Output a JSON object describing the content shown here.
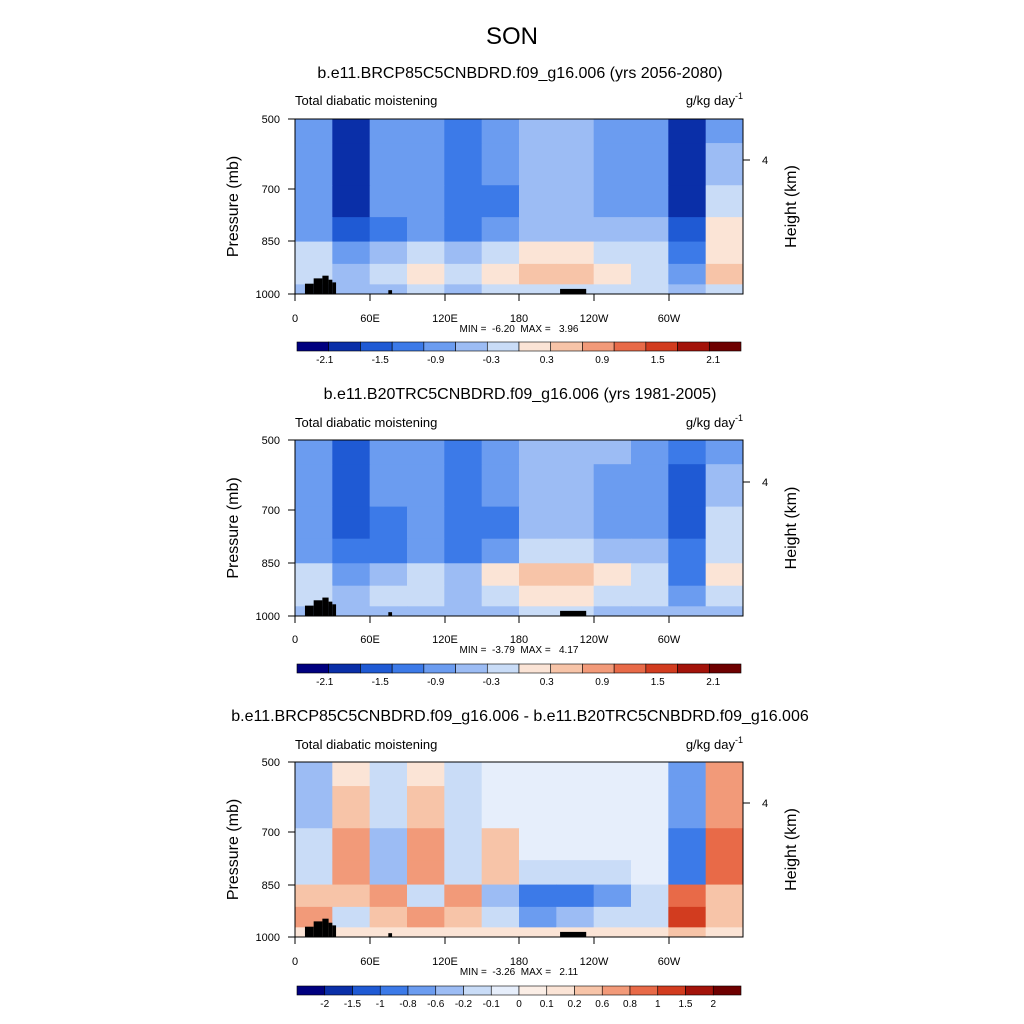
{
  "title": "SON",
  "colors": {
    "scale_12": [
      "#00007f",
      "#0a2fa8",
      "#1f5ad4",
      "#3c7ae8",
      "#6b9cf0",
      "#9cbcf4",
      "#c9dcf7",
      "#fbe4d6",
      "#f7c4a8",
      "#f29a79",
      "#e86a48",
      "#d23c1f",
      "#a3130a",
      "#6e0000"
    ],
    "scale_diff": [
      "#00007f",
      "#0a2fa8",
      "#1f5ad4",
      "#3c7ae8",
      "#6b9cf0",
      "#9cbcf4",
      "#c9dcf7",
      "#e6eefb",
      "#fbeee6",
      "#fbe4d6",
      "#f7c4a8",
      "#f29a79",
      "#e86a48",
      "#d23c1f",
      "#a3130a",
      "#6e0000"
    ],
    "topography": "#000000"
  },
  "panels": [
    {
      "title": "b.e11.BRCP85C5CNBDRD.f09_g16.006 (yrs 2056-2080)",
      "left_label": "Total diabatic moistening",
      "units_base": "g/kg day",
      "units_exp": "-1",
      "ylabel": "Pressure (mb)",
      "ylabel_right": "Height (km)",
      "yticks": [
        "500",
        "700",
        "850",
        "1000"
      ],
      "yticks_right": [
        "4"
      ],
      "xticks": [
        "0",
        "60E",
        "120E",
        "180",
        "120W",
        "60W"
      ],
      "stats": "MIN =  -6.20  MAX =   3.96",
      "colorbar_labels": [
        "-2.1",
        "-1.5",
        "-0.9",
        "-0.3",
        "0.3",
        "0.9",
        "1.5",
        "2.1"
      ]
    },
    {
      "title": "b.e11.B20TRC5CNBDRD.f09_g16.006 (yrs 1981-2005)",
      "left_label": "Total diabatic moistening",
      "units_base": "g/kg day",
      "units_exp": "-1",
      "ylabel": "Pressure (mb)",
      "ylabel_right": "Height (km)",
      "yticks": [
        "500",
        "700",
        "850",
        "1000"
      ],
      "yticks_right": [
        "4"
      ],
      "xticks": [
        "0",
        "60E",
        "120E",
        "180",
        "120W",
        "60W"
      ],
      "stats": "MIN =  -3.79  MAX =   4.17",
      "colorbar_labels": [
        "-2.1",
        "-1.5",
        "-0.9",
        "-0.3",
        "0.3",
        "0.9",
        "1.5",
        "2.1"
      ]
    },
    {
      "title": "b.e11.BRCP85C5CNBDRD.f09_g16.006 - b.e11.B20TRC5CNBDRD.f09_g16.006",
      "left_label": "Total diabatic moistening",
      "units_base": "g/kg day",
      "units_exp": "-1",
      "ylabel": "Pressure (mb)",
      "ylabel_right": "Height (km)",
      "yticks": [
        "500",
        "700",
        "850",
        "1000"
      ],
      "yticks_right": [
        "4"
      ],
      "xticks": [
        "0",
        "60E",
        "120E",
        "180",
        "120W",
        "60W"
      ],
      "stats": "MIN =  -3.26  MAX =   2.11",
      "colorbar_labels": [
        "-2",
        "-1.5",
        "-1",
        "-0.8",
        "-0.6",
        "-0.2",
        "-0.1",
        "0",
        "0.1",
        "0.2",
        "0.6",
        "0.8",
        "1",
        "1.5",
        "2"
      ]
    }
  ],
  "chart_data": [
    {
      "type": "heatmap",
      "title": "b.e11.BRCP85C5CNBDRD.f09_g16.006 (yrs 2056-2080)",
      "xlabel": "",
      "ylabel": "Pressure (mb)",
      "x": [
        0,
        30,
        60,
        90,
        120,
        150,
        180,
        210,
        240,
        270,
        300,
        330
      ],
      "y": [
        500,
        600,
        700,
        775,
        850,
        925,
        1000
      ],
      "z": [
        [
          -0.3,
          -2.1,
          -0.3,
          -0.3,
          -0.9,
          -0.3,
          0.3,
          0.3,
          -0.3,
          -0.3,
          -2.1,
          -0.3
        ],
        [
          -0.3,
          -2.1,
          -0.3,
          -0.3,
          -0.9,
          -0.3,
          0.3,
          0.3,
          -0.3,
          -0.3,
          -2.1,
          0.3
        ],
        [
          -0.3,
          -2.1,
          -0.3,
          -0.3,
          -0.9,
          -0.9,
          0.3,
          0.3,
          -0.3,
          -0.3,
          -2.1,
          0.9
        ],
        [
          -0.3,
          -1.5,
          -0.9,
          -0.3,
          -0.9,
          -0.3,
          0.3,
          0.3,
          0.3,
          0.3,
          -1.5,
          1.5
        ],
        [
          0.9,
          -0.3,
          0.3,
          0.9,
          0.3,
          0.9,
          1.5,
          1.5,
          0.9,
          0.9,
          -0.9,
          1.5
        ],
        [
          0.9,
          0.3,
          0.9,
          1.5,
          0.9,
          1.5,
          2.1,
          2.1,
          1.5,
          0.9,
          -0.3,
          2.1
        ],
        [
          0.3,
          0.3,
          0.3,
          0.9,
          0.3,
          0.9,
          0.9,
          0.9,
          0.9,
          0.9,
          0.3,
          0.9
        ]
      ],
      "min": -6.2,
      "max": 3.96,
      "levels": [
        -2.1,
        -1.5,
        -0.9,
        -0.3,
        0.3,
        0.9,
        1.5,
        2.1
      ]
    },
    {
      "type": "heatmap",
      "title": "b.e11.B20TRC5CNBDRD.f09_g16.006 (yrs 1981-2005)",
      "xlabel": "",
      "ylabel": "Pressure (mb)",
      "x": [
        0,
        30,
        60,
        90,
        120,
        150,
        180,
        210,
        240,
        270,
        300,
        330
      ],
      "y": [
        500,
        600,
        700,
        775,
        850,
        925,
        1000
      ],
      "z": [
        [
          -0.3,
          -1.5,
          -0.3,
          -0.3,
          -0.9,
          -0.3,
          0.3,
          0.3,
          0.3,
          -0.3,
          -0.9,
          -0.3
        ],
        [
          -0.3,
          -1.5,
          -0.3,
          -0.3,
          -0.9,
          -0.3,
          0.3,
          0.3,
          -0.3,
          -0.3,
          -1.5,
          0.3
        ],
        [
          -0.3,
          -1.5,
          -0.9,
          -0.3,
          -0.9,
          -0.9,
          0.3,
          0.3,
          -0.3,
          -0.3,
          -1.5,
          0.9
        ],
        [
          -0.3,
          -0.9,
          -0.9,
          -0.3,
          -0.9,
          -0.3,
          0.9,
          0.9,
          0.3,
          0.3,
          -0.9,
          0.9
        ],
        [
          0.9,
          -0.3,
          0.3,
          0.9,
          0.3,
          1.5,
          2.1,
          2.1,
          1.5,
          0.9,
          -0.9,
          1.5
        ],
        [
          0.9,
          0.3,
          0.9,
          0.9,
          0.3,
          0.9,
          1.5,
          1.5,
          0.9,
          0.9,
          -0.3,
          0.9
        ],
        [
          0.3,
          0.3,
          0.3,
          0.3,
          0.3,
          0.3,
          0.9,
          0.9,
          0.3,
          0.3,
          0.3,
          0.3
        ]
      ],
      "min": -3.79,
      "max": 4.17,
      "levels": [
        -2.1,
        -1.5,
        -0.9,
        -0.3,
        0.3,
        0.9,
        1.5,
        2.1
      ]
    },
    {
      "type": "heatmap",
      "title": "b.e11.BRCP85C5CNBDRD.f09_g16.006 - b.e11.B20TRC5CNBDRD.f09_g16.006",
      "xlabel": "",
      "ylabel": "Pressure (mb)",
      "x": [
        0,
        30,
        60,
        90,
        120,
        150,
        180,
        210,
        240,
        270,
        300,
        330
      ],
      "y": [
        500,
        600,
        700,
        775,
        850,
        925,
        1000
      ],
      "z": [
        [
          -0.6,
          0.1,
          -0.2,
          0.1,
          -0.2,
          -0.1,
          -0.1,
          -0.1,
          -0.1,
          -0.1,
          -0.8,
          0.6
        ],
        [
          -0.6,
          0.2,
          -0.2,
          0.2,
          -0.2,
          -0.1,
          -0.1,
          -0.1,
          -0.1,
          -0.1,
          -0.8,
          0.6
        ],
        [
          -0.2,
          0.6,
          -0.6,
          0.6,
          -0.2,
          0.2,
          -0.1,
          -0.1,
          -0.1,
          -0.1,
          -1,
          0.8
        ],
        [
          -0.2,
          0.6,
          -0.6,
          0.6,
          -0.2,
          0.2,
          -0.2,
          -0.2,
          -0.2,
          -0.1,
          -1,
          0.8
        ],
        [
          0.2,
          0.2,
          0.6,
          -0.2,
          0.6,
          -0.6,
          -1,
          -1,
          -0.8,
          -0.2,
          0.8,
          0.2
        ],
        [
          0.6,
          -0.2,
          0.2,
          0.6,
          0.2,
          -0.2,
          -0.8,
          -0.6,
          -0.2,
          -0.2,
          1,
          0.2
        ],
        [
          0.1,
          0.1,
          0.1,
          0.1,
          0.1,
          0.1,
          0.1,
          0.1,
          0.1,
          0.1,
          0.2,
          0.1
        ]
      ],
      "min": -3.26,
      "max": 2.11,
      "levels": [
        -2,
        -1.5,
        -1,
        -0.8,
        -0.6,
        -0.2,
        -0.1,
        0,
        0.1,
        0.2,
        0.6,
        0.8,
        1,
        1.5,
        2
      ]
    }
  ]
}
